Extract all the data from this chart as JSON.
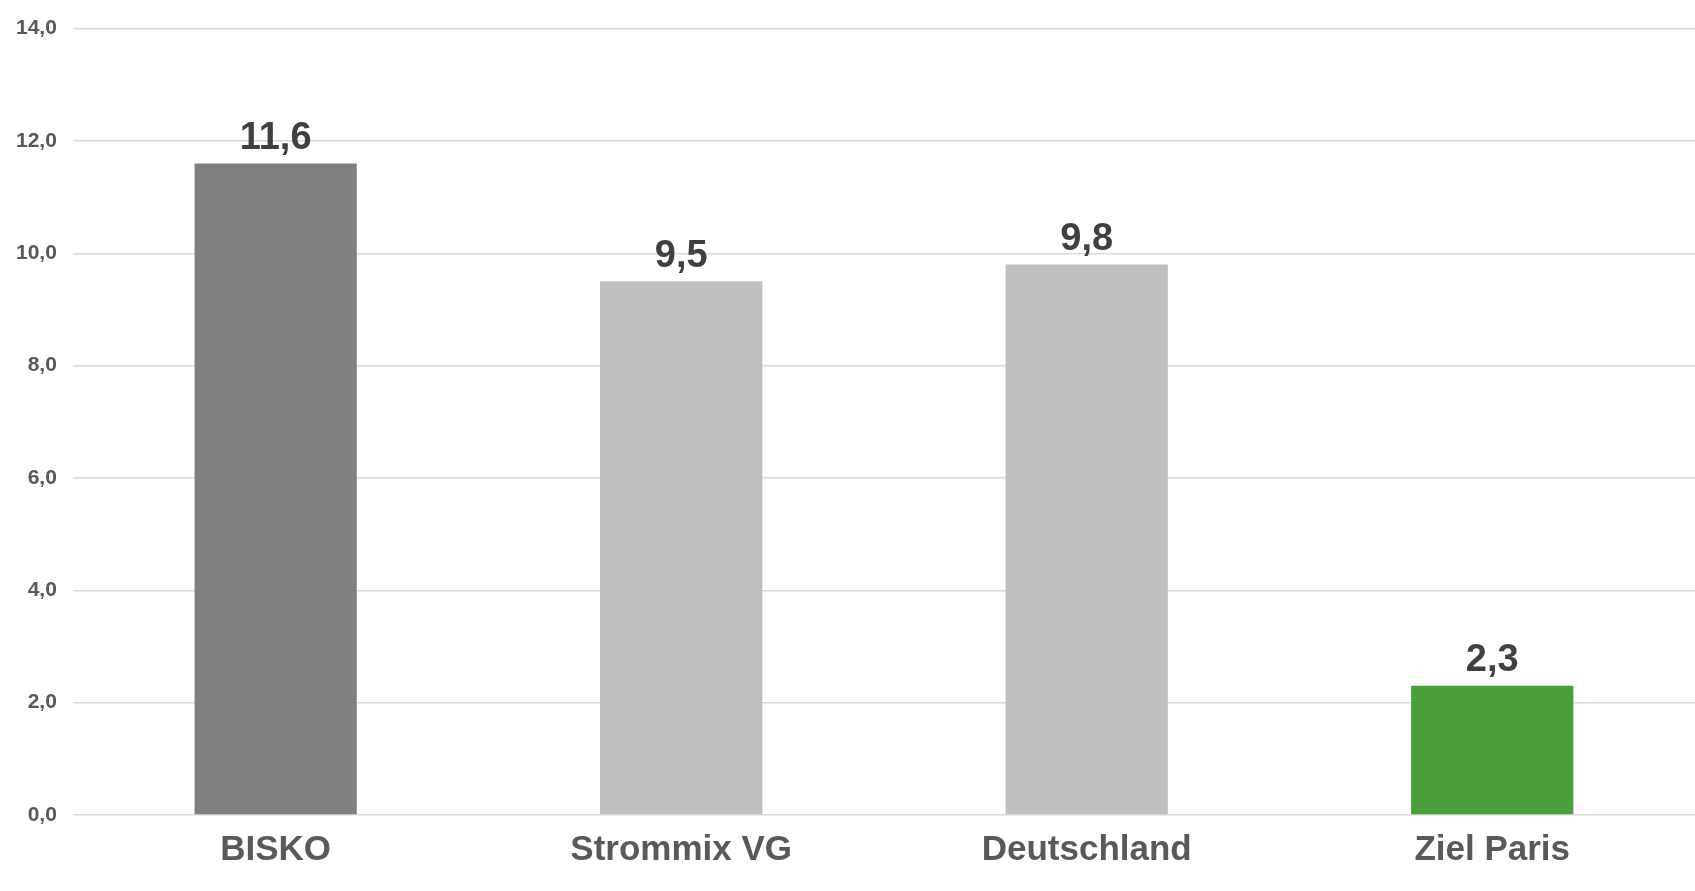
{
  "chart_data": {
    "type": "bar",
    "categories": [
      "BISKO",
      "Strommix VG",
      "Deutschland",
      "Ziel Paris"
    ],
    "values": [
      11.6,
      9.5,
      9.8,
      2.3
    ],
    "colors": [
      "#7f7f7f",
      "#bfbfbf",
      "#bfbfbf",
      "#4a9e3c"
    ],
    "value_labels": [
      "11,6",
      "9,5",
      "9,8",
      "2,3"
    ],
    "ylim": [
      0,
      14
    ],
    "yticks": [
      {
        "value": 0,
        "label": "0,0"
      },
      {
        "value": 2,
        "label": "2,0"
      },
      {
        "value": 4,
        "label": "4,0"
      },
      {
        "value": 6,
        "label": "6,0"
      },
      {
        "value": 8,
        "label": "8,0"
      },
      {
        "value": 10,
        "label": "10,0"
      },
      {
        "value": 12,
        "label": "12,0"
      },
      {
        "value": 14,
        "label": "14,0"
      }
    ],
    "grid": "y",
    "legend": false
  }
}
